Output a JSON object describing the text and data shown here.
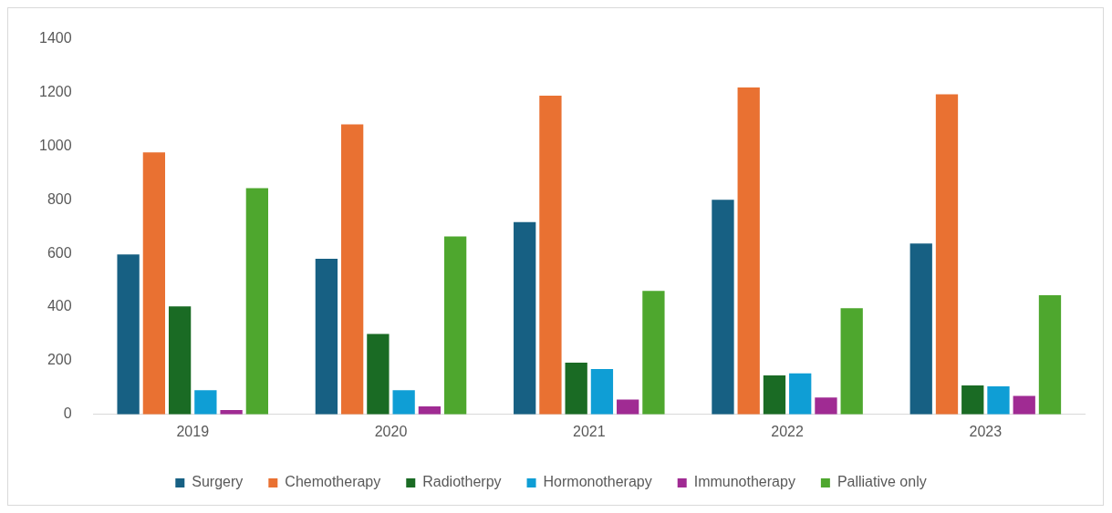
{
  "chart_data": {
    "type": "bar",
    "categories": [
      "2019",
      "2020",
      "2021",
      "2022",
      "2023"
    ],
    "series": [
      {
        "name": "Surgery",
        "color": "#176083",
        "values": [
          596,
          580,
          717,
          800,
          637
        ]
      },
      {
        "name": "Chemotherapy",
        "color": "#e97132",
        "values": [
          977,
          1081,
          1188,
          1219,
          1193
        ]
      },
      {
        "name": "Radiotherpy",
        "color": "#1a6b24",
        "values": [
          403,
          300,
          193,
          145,
          108
        ]
      },
      {
        "name": "Hormonotherapy",
        "color": "#0f9ed5",
        "values": [
          90,
          90,
          169,
          153,
          105
        ]
      },
      {
        "name": "Immunotherapy",
        "color": "#a02b93",
        "values": [
          16,
          30,
          55,
          63,
          69
        ]
      },
      {
        "name": "Palliative only",
        "color": "#4ea72e",
        "values": [
          843,
          663,
          460,
          396,
          444
        ]
      }
    ],
    "ylim": [
      0,
      1400
    ],
    "yticks": [
      0,
      200,
      400,
      600,
      800,
      1000,
      1200,
      1400
    ],
    "grid": false,
    "legend": "bottom"
  }
}
